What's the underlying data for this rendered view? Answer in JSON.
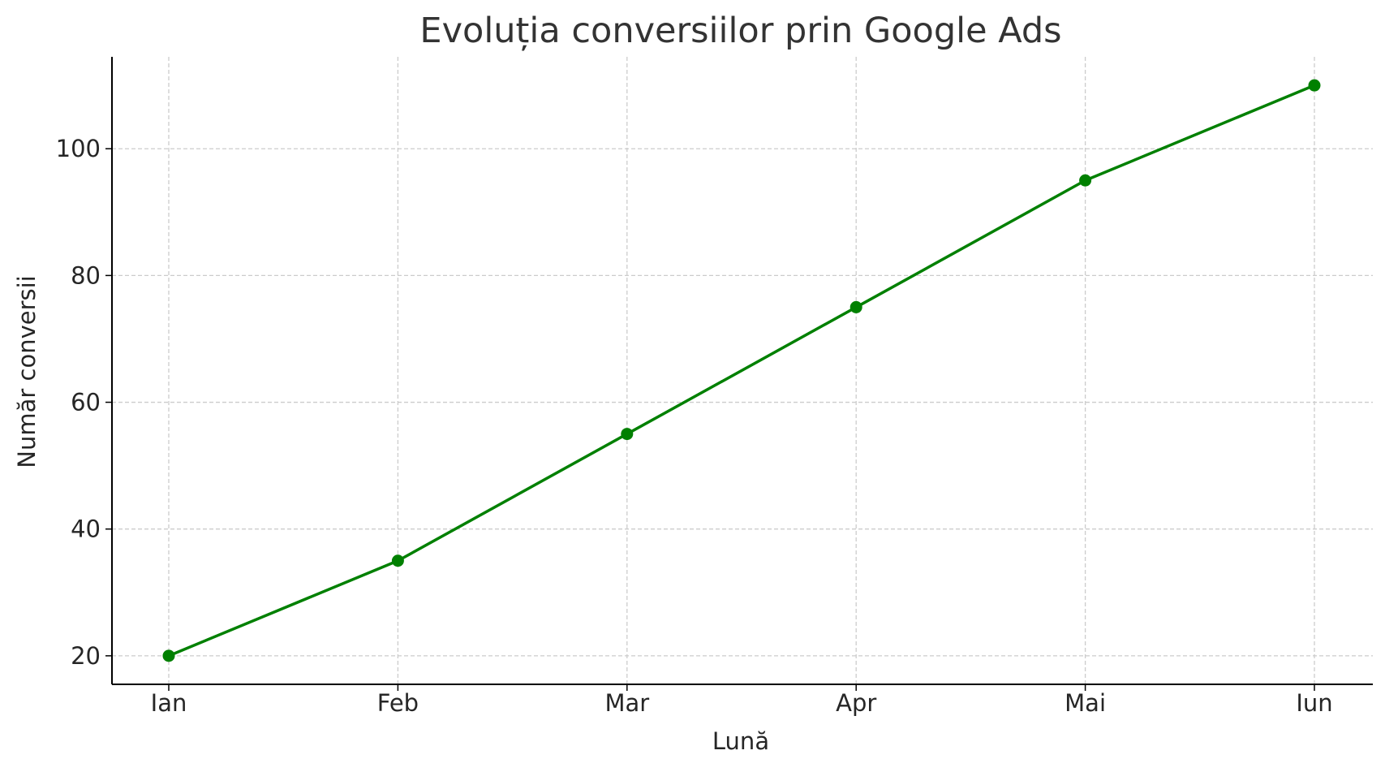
{
  "chart_data": {
    "type": "line",
    "title": "Evoluția conversiilor prin Google Ads",
    "xlabel": "Lună",
    "ylabel": "Număr conversii",
    "categories": [
      "Ian",
      "Feb",
      "Mar",
      "Apr",
      "Mai",
      "Iun"
    ],
    "series": [
      {
        "values": [
          20,
          35,
          55,
          75,
          95,
          110
        ],
        "color": "#008000",
        "marker": "circle"
      }
    ],
    "yticks": [
      20,
      40,
      60,
      80,
      100
    ],
    "ylim": [
      15.5,
      114.5
    ],
    "grid": true,
    "grid_style": "dashed",
    "colors": {
      "axis": "#000000",
      "grid": "#cccccc",
      "text": "#262626",
      "title": "#333333"
    }
  }
}
